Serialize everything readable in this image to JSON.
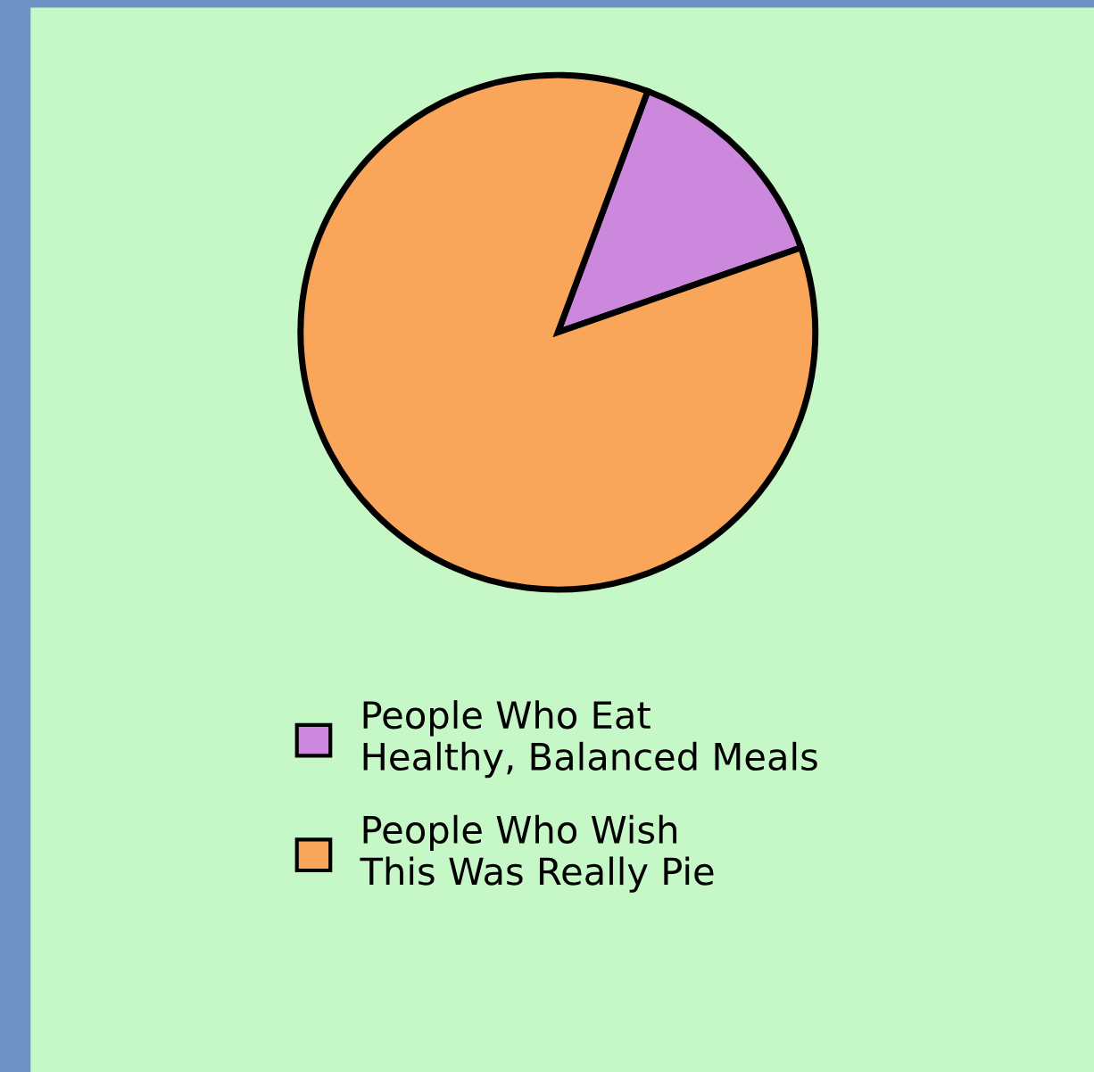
{
  "chart_data": {
    "type": "pie",
    "categories": [
      "People Who Eat\nHealthy, Balanced Meals",
      "People Who Wish\nThis Was Really Pie"
    ],
    "values": [
      14,
      86
    ],
    "colors": [
      "#cc88dd",
      "#f9a65a"
    ],
    "legend": "bottom"
  }
}
